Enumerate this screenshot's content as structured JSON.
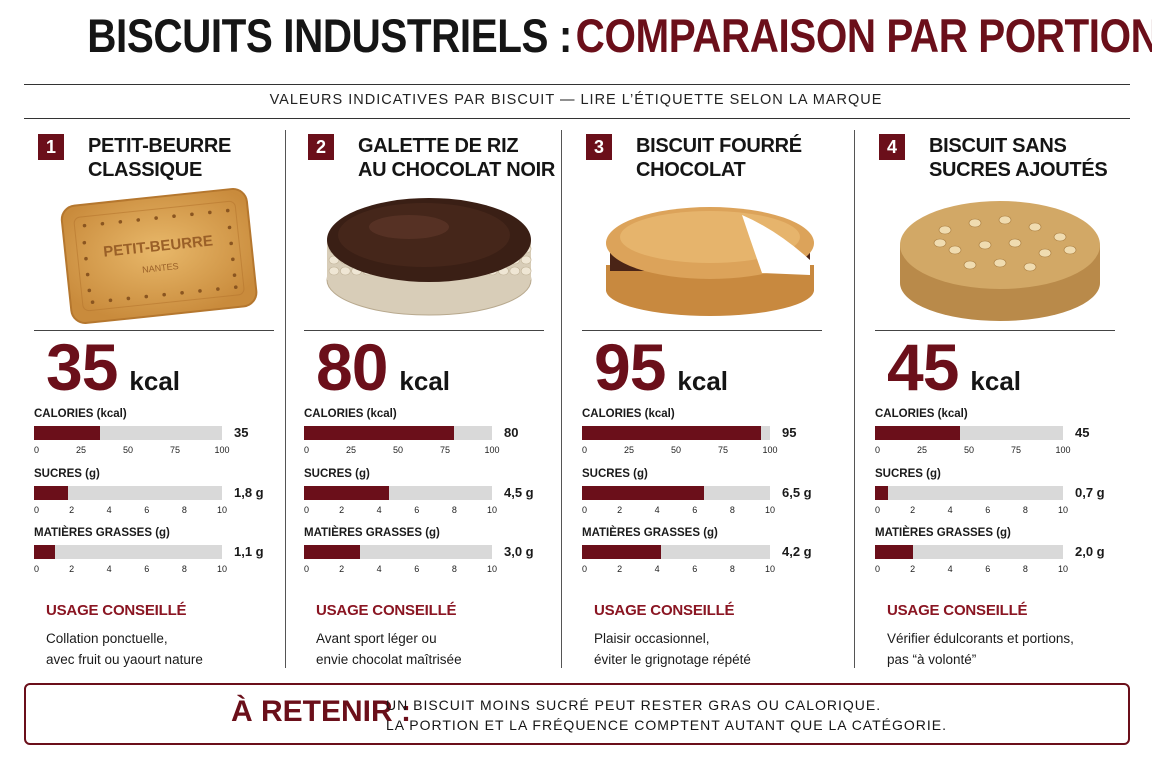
{
  "header": {
    "title_part1": "BISCUITS INDUSTRIELS :",
    "title_part2": "COMPARAISON PAR PORTION",
    "subtitle": "VALEURS INDICATIVES PAR BISCUIT — LIRE L’ÉTIQUETTE SELON LA MARQUE"
  },
  "colors": {
    "accent": "#6b0f1a",
    "track": "#d9d9d9",
    "text": "#151515"
  },
  "products": [
    {
      "number": "1",
      "title_line1": "PETIT-BEURRE",
      "title_line2": "CLASSIQUE",
      "image_icon": "petit-beurre-biscuit",
      "image_text_1": "PETIT-BEURRE",
      "image_text_2": "NANTES",
      "kcal_big": "35",
      "kcal_unit": "kcal",
      "usage_title": "USAGE CONSEILLÉ",
      "usage_line1": "Collation ponctuelle,",
      "usage_line2": "avec fruit ou yaourt nature"
    },
    {
      "number": "2",
      "title_line1": "GALETTE DE RIZ",
      "title_line2": "AU CHOCOLAT NOIR",
      "image_icon": "rice-cake-chocolate",
      "kcal_big": "80",
      "kcal_unit": "kcal",
      "usage_title": "USAGE CONSEILLÉ",
      "usage_line1": "Avant sport léger ou",
      "usage_line2": "envie chocolat maîtrisée"
    },
    {
      "number": "3",
      "title_line1": "BISCUIT FOURRÉ",
      "title_line2": "CHOCOLAT",
      "image_icon": "filled-chocolate-biscuit",
      "kcal_big": "95",
      "kcal_unit": "kcal",
      "usage_title": "USAGE CONSEILLÉ",
      "usage_line1": "Plaisir occasionnel,",
      "usage_line2": "éviter le grignotage répété"
    },
    {
      "number": "4",
      "title_line1": "BISCUIT SANS",
      "title_line2": "SUCRES AJOUTÉS",
      "image_icon": "oat-biscuit",
      "kcal_big": "45",
      "kcal_unit": "kcal",
      "usage_title": "USAGE CONSEILLÉ",
      "usage_line1": "Vérifier édulcorants et portions,",
      "usage_line2": "pas “à volonté”"
    }
  ],
  "chart_data": [
    {
      "type": "bar",
      "orientation": "horizontal",
      "product": "PETIT-BEURRE CLASSIQUE",
      "metrics": [
        {
          "label": "CALORIES (kcal)",
          "value": 35,
          "value_label": "35",
          "ticks": [
            "0",
            "25",
            "50",
            "75",
            "100"
          ],
          "xlim": [
            0,
            100
          ]
        },
        {
          "label": "SUCRES (g)",
          "value": 1.8,
          "value_label": "1,8 g",
          "ticks": [
            "0",
            "2",
            "4",
            "6",
            "8",
            "10"
          ],
          "xlim": [
            0,
            10
          ]
        },
        {
          "label": "MATIÈRES GRASSES (g)",
          "value": 1.1,
          "value_label": "1,1 g",
          "ticks": [
            "0",
            "2",
            "4",
            "6",
            "8",
            "10"
          ],
          "xlim": [
            0,
            10
          ]
        }
      ]
    },
    {
      "type": "bar",
      "orientation": "horizontal",
      "product": "GALETTE DE RIZ AU CHOCOLAT NOIR",
      "metrics": [
        {
          "label": "CALORIES (kcal)",
          "value": 80,
          "value_label": "80",
          "ticks": [
            "0",
            "25",
            "50",
            "75",
            "100"
          ],
          "xlim": [
            0,
            100
          ]
        },
        {
          "label": "SUCRES (g)",
          "value": 4.5,
          "value_label": "4,5 g",
          "ticks": [
            "0",
            "2",
            "4",
            "6",
            "8",
            "10"
          ],
          "xlim": [
            0,
            10
          ]
        },
        {
          "label": "MATIÈRES GRASSES (g)",
          "value": 3.0,
          "value_label": "3,0 g",
          "ticks": [
            "0",
            "2",
            "4",
            "6",
            "8",
            "10"
          ],
          "xlim": [
            0,
            10
          ]
        }
      ]
    },
    {
      "type": "bar",
      "orientation": "horizontal",
      "product": "BISCUIT FOURRÉ CHOCOLAT",
      "metrics": [
        {
          "label": "CALORIES (kcal)",
          "value": 95,
          "value_label": "95",
          "ticks": [
            "0",
            "25",
            "50",
            "75",
            "100"
          ],
          "xlim": [
            0,
            100
          ]
        },
        {
          "label": "SUCRES (g)",
          "value": 6.5,
          "value_label": "6,5 g",
          "ticks": [
            "0",
            "2",
            "4",
            "6",
            "8",
            "10"
          ],
          "xlim": [
            0,
            10
          ]
        },
        {
          "label": "MATIÈRES GRASSES (g)",
          "value": 4.2,
          "value_label": "4,2 g",
          "ticks": [
            "0",
            "2",
            "4",
            "6",
            "8",
            "10"
          ],
          "xlim": [
            0,
            10
          ]
        }
      ]
    },
    {
      "type": "bar",
      "orientation": "horizontal",
      "product": "BISCUIT SANS SUCRES AJOUTÉS",
      "metrics": [
        {
          "label": "CALORIES (kcal)",
          "value": 45,
          "value_label": "45",
          "ticks": [
            "0",
            "25",
            "50",
            "75",
            "100"
          ],
          "xlim": [
            0,
            100
          ]
        },
        {
          "label": "SUCRES (g)",
          "value": 0.7,
          "value_label": "0,7 g",
          "ticks": [
            "0",
            "2",
            "4",
            "6",
            "8",
            "10"
          ],
          "xlim": [
            0,
            10
          ]
        },
        {
          "label": "MATIÈRES GRASSES (g)",
          "value": 2.0,
          "value_label": "2,0 g",
          "ticks": [
            "0",
            "2",
            "4",
            "6",
            "8",
            "10"
          ],
          "xlim": [
            0,
            10
          ]
        }
      ]
    }
  ],
  "retenir": {
    "label": "À RETENIR :",
    "line1": "UN BISCUIT MOINS SUCRÉ PEUT RESTER GRAS OU CALORIQUE.",
    "line2": "LA PORTION ET LA FRÉQUENCE COMPTENT AUTANT QUE LA CATÉGORIE."
  }
}
